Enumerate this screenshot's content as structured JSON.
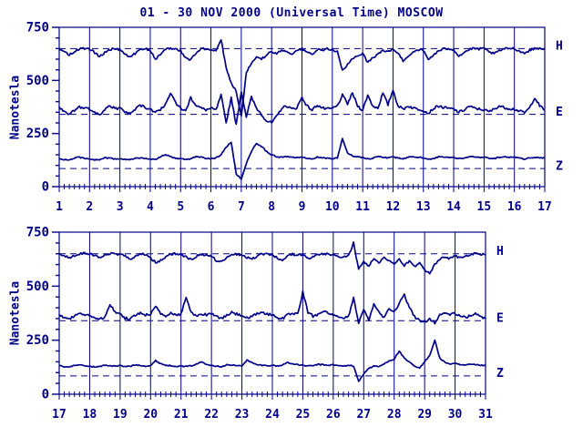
{
  "title": "01 - 30 NOV 2000 (Universal Time) MOSCOW",
  "colors": {
    "ink": "#000088",
    "background": "#ffffff"
  },
  "chart_data": [
    {
      "type": "line",
      "panel": "top",
      "ylabel": "Nanotesla",
      "ylim": [
        0,
        750
      ],
      "y_major_ticks": [
        0,
        250,
        500,
        750
      ],
      "y_minor_step": 50,
      "xlim": [
        1,
        17
      ],
      "x_tick_labels": [
        "1",
        "2",
        "3",
        "4",
        "5",
        "6",
        "7",
        "8",
        "9",
        "10",
        "11",
        "12",
        "13",
        "14",
        "15",
        "16",
        "17"
      ],
      "x_minor_per_day": 6,
      "grid": "vertical line at each day, boxed frame",
      "legend_position": "right of panel",
      "series": [
        {
          "name": "H",
          "baseline_dashed": 650,
          "noise": 5,
          "x_start": 1,
          "x_step_days": 0.1666667,
          "values": [
            645,
            632,
            622,
            635,
            648,
            650,
            648,
            630,
            612,
            630,
            646,
            650,
            645,
            628,
            610,
            626,
            644,
            650,
            642,
            600,
            620,
            645,
            652,
            648,
            640,
            604,
            598,
            628,
            648,
            650,
            645,
            640,
            695,
            560,
            490,
            450,
            330,
            540,
            580,
            610,
            600,
            620,
            638,
            622,
            645,
            635,
            625,
            642,
            648,
            635,
            620,
            645,
            640,
            650,
            645,
            635,
            545,
            575,
            600,
            615,
            630,
            585,
            605,
            625,
            640,
            635,
            645,
            630,
            590,
            615,
            635,
            645,
            640,
            598,
            620,
            638,
            648,
            650,
            645,
            615,
            630,
            645,
            650,
            648,
            650,
            635,
            625,
            640,
            648,
            652,
            650,
            638,
            628,
            642,
            650,
            652,
            648
          ]
        },
        {
          "name": "E",
          "baseline_dashed": 340,
          "noise": 6,
          "x_start": 1,
          "x_step_days": 0.1666667,
          "values": [
            370,
            352,
            342,
            360,
            375,
            368,
            365,
            348,
            340,
            362,
            380,
            370,
            368,
            350,
            345,
            365,
            385,
            372,
            365,
            350,
            360,
            390,
            440,
            395,
            370,
            355,
            420,
            385,
            370,
            362,
            368,
            360,
            430,
            300,
            420,
            290,
            450,
            330,
            420,
            370,
            340,
            310,
            300,
            330,
            370,
            380,
            365,
            372,
            420,
            380,
            360,
            385,
            370,
            365,
            368,
            380,
            430,
            390,
            440,
            380,
            360,
            430,
            380,
            370,
            440,
            385,
            455,
            380,
            365,
            380,
            370,
            365,
            360,
            345,
            368,
            380,
            372,
            368,
            365,
            350,
            360,
            378,
            370,
            365,
            362,
            352,
            365,
            380,
            372,
            368,
            365,
            355,
            348,
            370,
            420,
            380,
            360
          ]
        },
        {
          "name": "Z",
          "baseline_dashed": 85,
          "noise": 2.5,
          "x_start": 1,
          "x_step_days": 0.1666667,
          "values": [
            132,
            128,
            125,
            135,
            138,
            132,
            130,
            126,
            128,
            136,
            134,
            130,
            132,
            128,
            126,
            134,
            136,
            132,
            130,
            128,
            140,
            152,
            140,
            134,
            132,
            128,
            130,
            142,
            138,
            134,
            132,
            135,
            150,
            185,
            210,
            60,
            35,
            110,
            165,
            205,
            190,
            165,
            150,
            140,
            138,
            142,
            138,
            136,
            138,
            132,
            130,
            140,
            136,
            134,
            132,
            135,
            225,
            160,
            145,
            140,
            138,
            130,
            135,
            142,
            138,
            136,
            140,
            134,
            130,
            138,
            142,
            138,
            136,
            130,
            132,
            140,
            138,
            136,
            138,
            132,
            134,
            140,
            142,
            138,
            140,
            134,
            132,
            138,
            140,
            138,
            138,
            134,
            130,
            136,
            138,
            136,
            134
          ]
        }
      ]
    },
    {
      "type": "line",
      "panel": "bottom",
      "ylabel": "Nanotesla",
      "ylim": [
        0,
        750
      ],
      "y_major_ticks": [
        0,
        250,
        500,
        750
      ],
      "y_minor_step": 50,
      "xlim": [
        17,
        31
      ],
      "x_tick_labels": [
        "17",
        "18",
        "19",
        "20",
        "21",
        "22",
        "23",
        "24",
        "25",
        "26",
        "27",
        "28",
        "29",
        "30",
        "31"
      ],
      "x_minor_per_day": 6,
      "grid": "vertical line at each day, boxed frame",
      "legend_position": "right of panel",
      "series": [
        {
          "name": "H",
          "baseline_dashed": 650,
          "noise": 5,
          "x_start": 17,
          "x_step_days": 0.1666667,
          "values": [
            648,
            640,
            632,
            642,
            650,
            652,
            650,
            642,
            635,
            645,
            652,
            650,
            648,
            638,
            625,
            640,
            650,
            645,
            630,
            610,
            618,
            635,
            648,
            650,
            645,
            635,
            622,
            638,
            648,
            645,
            640,
            618,
            612,
            630,
            645,
            648,
            645,
            632,
            625,
            640,
            650,
            648,
            645,
            630,
            622,
            638,
            648,
            645,
            642,
            628,
            635,
            645,
            650,
            648,
            645,
            638,
            632,
            640,
            700,
            580,
            615,
            595,
            625,
            605,
            635,
            615,
            600,
            625,
            595,
            615,
            590,
            605,
            575,
            560,
            600,
            625,
            635,
            628,
            640,
            630,
            638,
            648,
            652,
            650,
            645
          ]
        },
        {
          "name": "E",
          "baseline_dashed": 340,
          "noise": 6,
          "x_start": 17,
          "x_step_days": 0.1666667,
          "values": [
            368,
            355,
            348,
            362,
            372,
            365,
            362,
            350,
            345,
            360,
            415,
            380,
            368,
            352,
            348,
            365,
            378,
            368,
            370,
            412,
            370,
            360,
            375,
            365,
            370,
            448,
            375,
            362,
            372,
            368,
            375,
            360,
            348,
            365,
            378,
            370,
            365,
            352,
            358,
            372,
            380,
            370,
            368,
            355,
            350,
            368,
            375,
            370,
            472,
            380,
            362,
            370,
            388,
            372,
            365,
            355,
            350,
            360,
            450,
            330,
            390,
            345,
            420,
            380,
            355,
            400,
            380,
            420,
            460,
            400,
            360,
            340,
            335,
            350,
            330,
            368,
            375,
            370,
            372,
            362,
            355,
            365,
            370,
            362,
            350
          ]
        },
        {
          "name": "Z",
          "baseline_dashed": 85,
          "noise": 2.5,
          "x_start": 17,
          "x_step_days": 0.1666667,
          "values": [
            132,
            128,
            126,
            134,
            136,
            130,
            130,
            126,
            128,
            135,
            132,
            130,
            132,
            128,
            130,
            136,
            134,
            130,
            132,
            155,
            142,
            134,
            132,
            130,
            130,
            128,
            132,
            138,
            150,
            140,
            134,
            130,
            128,
            136,
            134,
            132,
            132,
            158,
            145,
            136,
            134,
            132,
            134,
            130,
            135,
            148,
            140,
            136,
            134,
            130,
            132,
            138,
            136,
            134,
            136,
            132,
            130,
            134,
            130,
            60,
            95,
            120,
            130,
            128,
            140,
            155,
            162,
            200,
            165,
            148,
            130,
            120,
            150,
            180,
            250,
            165,
            148,
            140,
            142,
            136,
            134,
            138,
            136,
            134,
            132
          ]
        }
      ]
    }
  ]
}
